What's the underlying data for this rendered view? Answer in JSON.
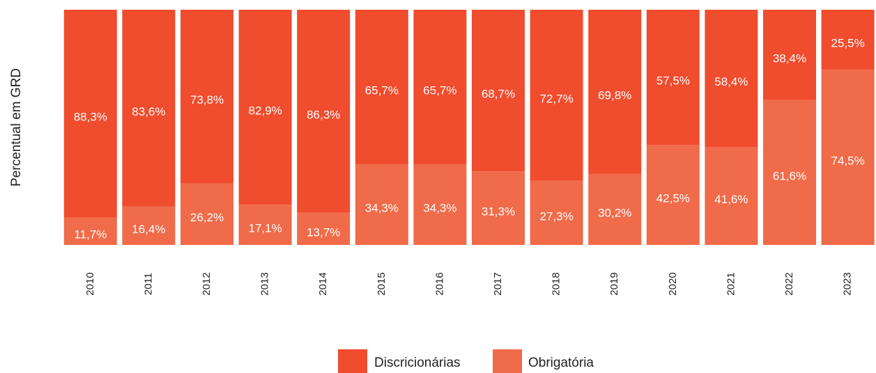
{
  "chart_data": {
    "type": "stacked_bar",
    "y_label": "Percentual em GRD",
    "categories": [
      "2010",
      "2011",
      "2012",
      "2013",
      "2014",
      "2015",
      "2016",
      "2017",
      "2018",
      "2019",
      "2020",
      "2021",
      "2022",
      "2023"
    ],
    "series": [
      {
        "name": "Discricionárias",
        "color": "#f04c2e",
        "values": [
          88.3,
          83.6,
          73.8,
          82.9,
          86.3,
          65.7,
          65.7,
          68.7,
          72.7,
          69.8,
          57.5,
          58.4,
          38.4,
          25.5
        ],
        "value_labels": [
          "88,3%",
          "83,6%",
          "73,8%",
          "82,9%",
          "86,3%",
          "65,7%",
          "65,7%",
          "68,7%",
          "72,7%",
          "69,8%",
          "57,5%",
          "58,4%",
          "38,4%",
          "25,5%"
        ]
      },
      {
        "name": "Obrigatória",
        "color": "#f06b49",
        "values": [
          11.7,
          16.4,
          26.2,
          17.1,
          13.7,
          34.3,
          34.3,
          31.3,
          27.3,
          30.2,
          42.5,
          41.6,
          61.6,
          74.5
        ],
        "value_labels": [
          "11,7%",
          "16,4%",
          "26,2%",
          "17,1%",
          "13,7%",
          "34,3%",
          "34,3%",
          "31,3%",
          "27,3%",
          "30,2%",
          "42,5%",
          "41,6%",
          "61,6%",
          "74,5%"
        ]
      }
    ],
    "ylim": [
      0,
      100
    ],
    "legend": "bottom"
  }
}
